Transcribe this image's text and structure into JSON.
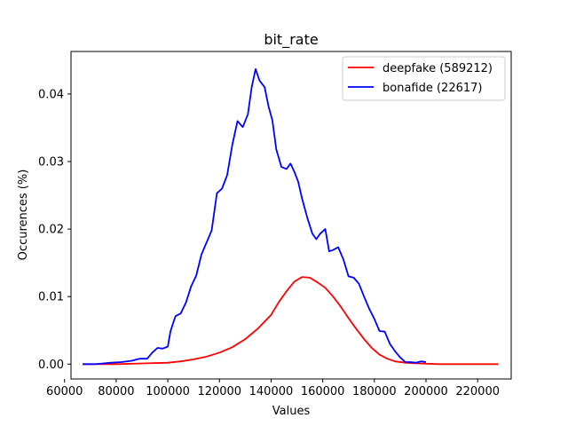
{
  "chart_data": {
    "type": "line",
    "title": "bit_rate",
    "xlabel": "Values",
    "ylabel": "Occurences (%)",
    "xlim": [
      62500,
      233000
    ],
    "ylim": [
      -0.0022,
      0.0463
    ],
    "xticks": [
      60000,
      80000,
      100000,
      120000,
      140000,
      160000,
      180000,
      200000,
      220000
    ],
    "xtick_labels": [
      "60000",
      "80000",
      "100000",
      "120000",
      "140000",
      "160000",
      "180000",
      "200000",
      "220000"
    ],
    "yticks": [
      0.0,
      0.01,
      0.02,
      0.03,
      0.04
    ],
    "ytick_labels": [
      "0.00",
      "0.01",
      "0.02",
      "0.03",
      "0.04"
    ],
    "grid": false,
    "legend_position": "top-right",
    "series": [
      {
        "name": "deepfake (589212)",
        "color": "#ff0000",
        "points": [
          [
            67000,
            0.0
          ],
          [
            80000,
            0.0
          ],
          [
            90000,
            0.0001
          ],
          [
            100000,
            0.0002
          ],
          [
            105000,
            0.0004
          ],
          [
            110000,
            0.0007
          ],
          [
            115000,
            0.0011
          ],
          [
            120000,
            0.0017
          ],
          [
            125000,
            0.0025
          ],
          [
            130000,
            0.0037
          ],
          [
            135000,
            0.0053
          ],
          [
            140000,
            0.0073
          ],
          [
            143000,
            0.0092
          ],
          [
            146000,
            0.0108
          ],
          [
            149000,
            0.0122
          ],
          [
            152000,
            0.0129
          ],
          [
            155000,
            0.0128
          ],
          [
            158000,
            0.0121
          ],
          [
            161000,
            0.0113
          ],
          [
            164000,
            0.01
          ],
          [
            167000,
            0.0085
          ],
          [
            170000,
            0.0068
          ],
          [
            173000,
            0.0052
          ],
          [
            176000,
            0.0037
          ],
          [
            179000,
            0.0024
          ],
          [
            182000,
            0.0014
          ],
          [
            185000,
            0.0008
          ],
          [
            188000,
            0.0004
          ],
          [
            192000,
            0.0002
          ],
          [
            197000,
            0.0001
          ],
          [
            205000,
            0.0
          ],
          [
            215000,
            0.0
          ],
          [
            228000,
            0.0
          ]
        ]
      },
      {
        "name": "bonafide (22617)",
        "color": "#0000ff",
        "points": [
          [
            67000,
            0.0
          ],
          [
            72000,
            0.0
          ],
          [
            75000,
            0.0001
          ],
          [
            78000,
            0.0002
          ],
          [
            82000,
            0.0003
          ],
          [
            86000,
            0.0005
          ],
          [
            89000,
            0.0008
          ],
          [
            92000,
            0.0008
          ],
          [
            94000,
            0.0017
          ],
          [
            96000,
            0.0024
          ],
          [
            98000,
            0.0023
          ],
          [
            100000,
            0.0026
          ],
          [
            101000,
            0.0048
          ],
          [
            102000,
            0.006
          ],
          [
            103000,
            0.0071
          ],
          [
            105000,
            0.0075
          ],
          [
            107000,
            0.0091
          ],
          [
            109000,
            0.0115
          ],
          [
            111000,
            0.0131
          ],
          [
            113000,
            0.0162
          ],
          [
            115000,
            0.018
          ],
          [
            117000,
            0.0198
          ],
          [
            119000,
            0.0253
          ],
          [
            121000,
            0.026
          ],
          [
            123000,
            0.028
          ],
          [
            125000,
            0.0325
          ],
          [
            127000,
            0.036
          ],
          [
            129000,
            0.0351
          ],
          [
            131000,
            0.037
          ],
          [
            132500,
            0.041
          ],
          [
            134000,
            0.0437
          ],
          [
            135500,
            0.042
          ],
          [
            137500,
            0.041
          ],
          [
            139000,
            0.0382
          ],
          [
            140500,
            0.0361
          ],
          [
            142000,
            0.0318
          ],
          [
            144000,
            0.0292
          ],
          [
            146000,
            0.0289
          ],
          [
            147500,
            0.0297
          ],
          [
            149000,
            0.0285
          ],
          [
            150500,
            0.027
          ],
          [
            152000,
            0.0245
          ],
          [
            154000,
            0.0217
          ],
          [
            156000,
            0.0193
          ],
          [
            157500,
            0.0185
          ],
          [
            159000,
            0.0193
          ],
          [
            161000,
            0.02
          ],
          [
            162500,
            0.0167
          ],
          [
            164000,
            0.0169
          ],
          [
            166000,
            0.0173
          ],
          [
            168000,
            0.0155
          ],
          [
            170000,
            0.013
          ],
          [
            172000,
            0.0128
          ],
          [
            174000,
            0.0119
          ],
          [
            176000,
            0.01
          ],
          [
            178000,
            0.0082
          ],
          [
            180000,
            0.0067
          ],
          [
            182000,
            0.0049
          ],
          [
            184000,
            0.0048
          ],
          [
            186000,
            0.003
          ],
          [
            188000,
            0.0019
          ],
          [
            190000,
            0.001
          ],
          [
            192000,
            0.0003
          ],
          [
            194000,
            0.0003
          ],
          [
            196000,
            0.0002
          ],
          [
            198000,
            0.0004
          ],
          [
            200000,
            0.0003
          ]
        ]
      }
    ]
  }
}
